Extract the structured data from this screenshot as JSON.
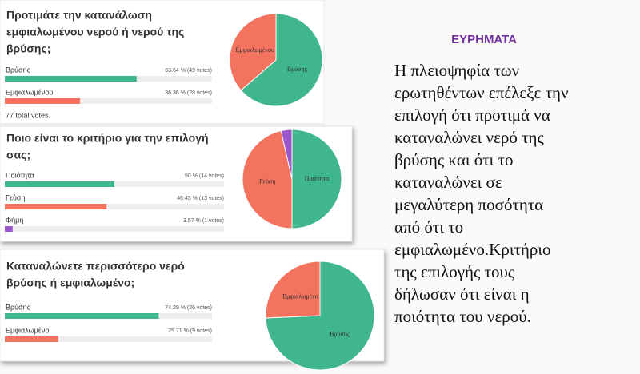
{
  "polls": [
    {
      "question": [
        "Προτιμάτε την κατανάλωση",
        "εμφιαλωμένου νερού ή νερού της",
        "βρύσης;"
      ],
      "options": [
        {
          "name": "Βρύσης",
          "value": 63.64,
          "label": "63.64 % (49 votes)",
          "color": "#3fb68b"
        },
        {
          "name": "Εμφιαλωμένου",
          "value": 36.36,
          "label": "36.36 % (28 votes)",
          "color": "#f4735f"
        }
      ],
      "total": "77 total votes."
    },
    {
      "question": [
        "Ποιο είναι το κριτήριο για την επιλογή",
        "σας;"
      ],
      "options": [
        {
          "name": "Ποιότητα",
          "value": 50,
          "label": "50 % (14 votes)",
          "color": "#3fb68b"
        },
        {
          "name": "Γεύση",
          "value": 46.43,
          "label": "46.43 % (13 votes)",
          "color": "#f4735f"
        },
        {
          "name": "Φήμη",
          "value": 3.57,
          "label": "3.57 % (1 votes)",
          "color": "#9b55cc"
        }
      ]
    },
    {
      "question": [
        "Καταναλώνετε περισσότερο νερό",
        "βρύσης ή εμφιαλωμένο;"
      ],
      "options": [
        {
          "name": "Βρύσης",
          "value": 74.29,
          "label": "74.29 % (26 votes)",
          "color": "#3fb68b"
        },
        {
          "name": "Εμφιαλωμένο",
          "value": 25.71,
          "label": "25.71 % (9 votes)",
          "color": "#f4735f"
        }
      ]
    }
  ],
  "findings": {
    "title": "ΕΥΡΗΜΑΤΑ",
    "lines": [
      "Η πλειοψηφία των",
      "ερωτηθέντων επέλεξε την",
      "επιλογή ότι προτιμά να",
      "καταναλώνει νερό της",
      "βρύσης και ότι το",
      "καταναλώνει σε",
      "μεγαλύτερη ποσότητα",
      "από ότι το",
      "εμφιαλωμένο.Κριτήριο",
      "της επιλογής τους",
      "δήλωσαν ότι είναι η",
      "ποιότητα του νερού."
    ]
  }
}
